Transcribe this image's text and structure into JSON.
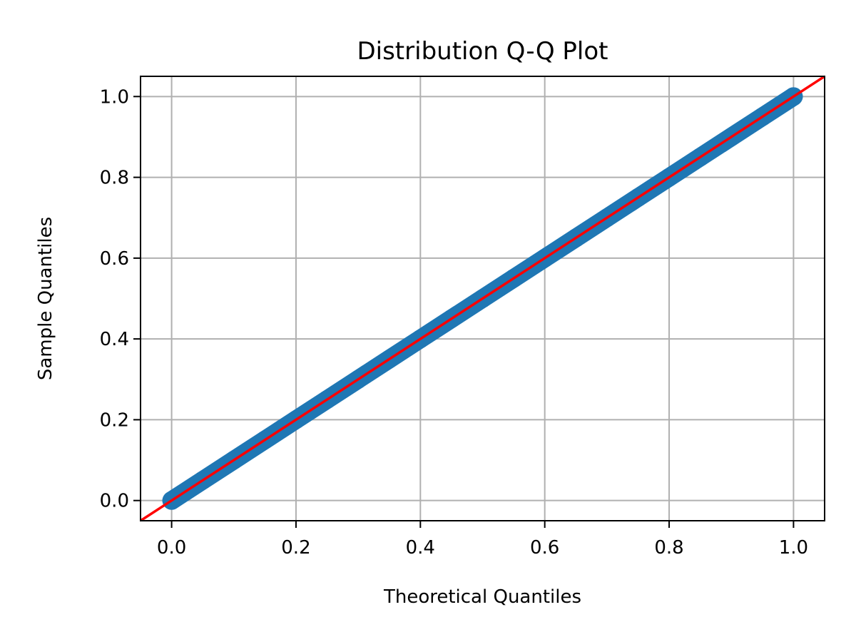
{
  "chart_data": {
    "type": "scatter",
    "title": "Distribution Q-Q Plot",
    "xlabel": "Theoretical Quantiles",
    "ylabel": "Sample Quantiles",
    "xlim": [
      -0.05,
      1.05
    ],
    "ylim": [
      -0.05,
      1.05
    ],
    "xticks": [
      0.0,
      0.2,
      0.4,
      0.6,
      0.8,
      1.0
    ],
    "xtick_labels": [
      "0.0",
      "0.2",
      "0.4",
      "0.6",
      "0.8",
      "1.0"
    ],
    "yticks": [
      0.0,
      0.2,
      0.4,
      0.6,
      0.8,
      1.0
    ],
    "ytick_labels": [
      "0.0",
      "0.2",
      "0.4",
      "0.6",
      "0.8",
      "1.0"
    ],
    "grid": true,
    "series": [
      {
        "marker": "circle",
        "color": "#1f77b4",
        "x": [
          0.0,
          0.05,
          0.1,
          0.15,
          0.2,
          0.25,
          0.3,
          0.35,
          0.4,
          0.45,
          0.5,
          0.55,
          0.6,
          0.65,
          0.7,
          0.75,
          0.8,
          0.85,
          0.9,
          0.95,
          1.0
        ],
        "y": [
          0.0,
          0.05,
          0.1,
          0.15,
          0.2,
          0.25,
          0.3,
          0.35,
          0.4,
          0.45,
          0.5,
          0.55,
          0.6,
          0.65,
          0.7,
          0.75,
          0.8,
          0.85,
          0.9,
          0.95,
          1.0
        ]
      }
    ],
    "reference_line": {
      "type": "y=x",
      "color": "#ff0000"
    }
  }
}
